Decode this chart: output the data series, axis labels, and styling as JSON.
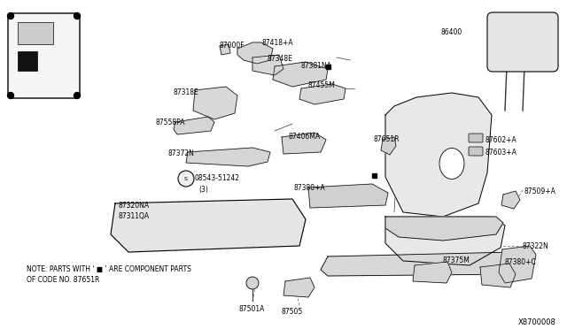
{
  "bg_color": "#ffffff",
  "diagram_id": "X8700008",
  "note_line1": "NOTE: PARTS WITH ' ■ ' ARE COMPONENT PARTS",
  "note_line2": "OF CODE NO. 87651R",
  "fig_w": 6.4,
  "fig_h": 3.72,
  "dpi": 100
}
